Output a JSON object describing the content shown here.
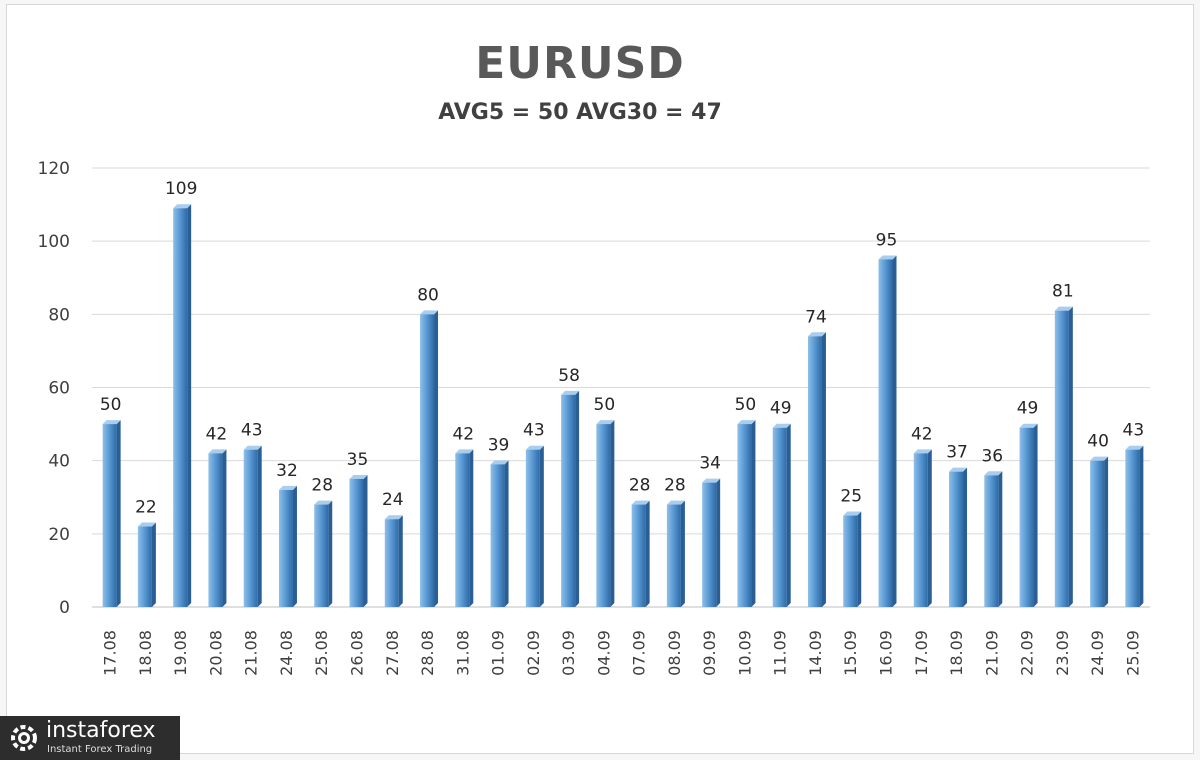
{
  "chart_data": {
    "type": "bar",
    "title": "EURUSD",
    "subtitle": "AVG5 = 50 AVG30 = 47",
    "categories": [
      "17.08",
      "18.08",
      "19.08",
      "20.08",
      "21.08",
      "24.08",
      "25.08",
      "26.08",
      "27.08",
      "28.08",
      "31.08",
      "01.09",
      "02.09",
      "03.09",
      "04.09",
      "07.09",
      "08.09",
      "09.09",
      "10.09",
      "11.09",
      "14.09",
      "15.09",
      "16.09",
      "17.09",
      "18.09",
      "21.09",
      "22.09",
      "23.09",
      "24.09",
      "25.09"
    ],
    "values": [
      50,
      22,
      109,
      42,
      43,
      32,
      28,
      35,
      24,
      80,
      42,
      39,
      43,
      58,
      50,
      28,
      28,
      34,
      50,
      49,
      74,
      25,
      95,
      42,
      37,
      36,
      49,
      81,
      40,
      43
    ],
    "yticks": [
      "0",
      "20",
      "40",
      "60",
      "80",
      "100",
      "120"
    ],
    "ylim": [
      0,
      120
    ],
    "grid": true,
    "legend": "none",
    "bar_color": "#5b9bd5"
  },
  "logo": {
    "name": "instaforex",
    "tagline": "Instant Forex Trading"
  }
}
